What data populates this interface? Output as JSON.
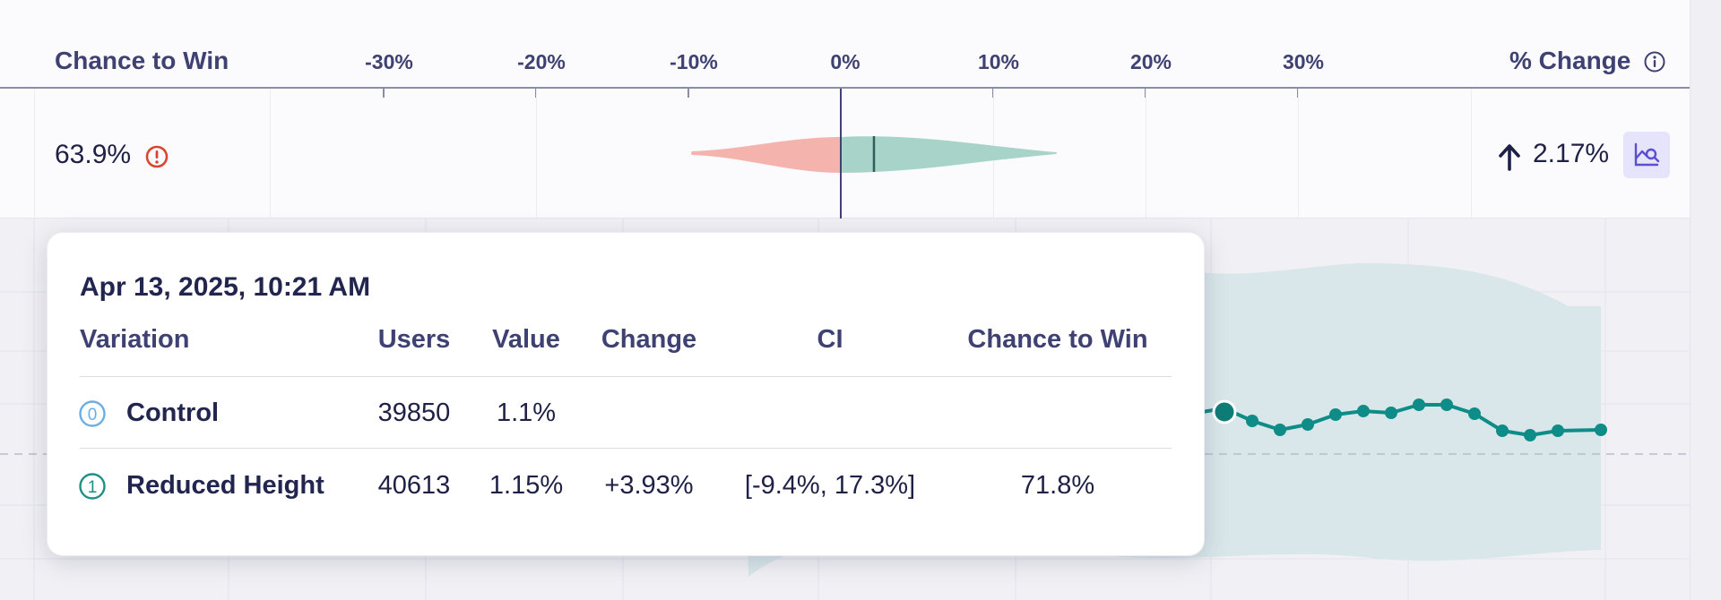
{
  "header": {
    "chance_to_win": "Chance to Win",
    "percent_change": "% Change",
    "axis_ticks": [
      "-30%",
      "-20%",
      "-10%",
      "0%",
      "10%",
      "20%",
      "30%"
    ]
  },
  "summary_row": {
    "chance_to_win": "63.9%",
    "percent_change": "2.17%",
    "change_direction": "up"
  },
  "colors": {
    "negative": "#f4b3ad",
    "positive": "#a8d3c9",
    "line": "#0e8c87",
    "ci_band": "#d9e7ea",
    "warning": "#d9452f",
    "control": "#6aaee6",
    "variant": "#1f8f86"
  },
  "tooltip": {
    "date": "Apr 13, 2025, 10:21 AM",
    "columns": {
      "variation": "Variation",
      "users": "Users",
      "value": "Value",
      "change": "Change",
      "ci": "CI",
      "chance_to_win": "Chance to Win"
    },
    "rows": [
      {
        "index": "0",
        "name": "Control",
        "users": "39850",
        "value": "1.1%",
        "change": "",
        "ci": "",
        "chance_to_win": ""
      },
      {
        "index": "1",
        "name": "Reduced Height",
        "users": "40613",
        "value": "1.15%",
        "change": "+3.93%",
        "ci": "[-9.4%, 17.3%]",
        "chance_to_win": "71.8%"
      }
    ]
  }
}
